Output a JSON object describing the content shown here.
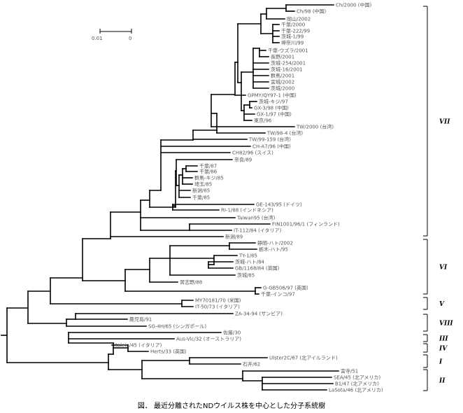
{
  "leaves": [
    {
      "id": "L0",
      "label": "Ch/2000 (中国)"
    },
    {
      "id": "L1",
      "label": "Ch/98 (中国)"
    },
    {
      "id": "L2",
      "label": "岡山/2002"
    },
    {
      "id": "L3",
      "label": "千葉/2000"
    },
    {
      "id": "L4",
      "label": "千葉-222/99"
    },
    {
      "id": "L5",
      "label": "茨城-1/99"
    },
    {
      "id": "L6",
      "label": "神奈川/99"
    },
    {
      "id": "L7",
      "label": "千葉-ウズラ/2001"
    },
    {
      "id": "L8",
      "label": "長野/2001"
    },
    {
      "id": "L9",
      "label": "茨城-254/2001"
    },
    {
      "id": "L10",
      "label": "茨城-16/2001"
    },
    {
      "id": "L11",
      "label": "群馬/2001"
    },
    {
      "id": "L12",
      "label": "宮城/2002"
    },
    {
      "id": "L13",
      "label": "茨城/2000"
    },
    {
      "id": "L14",
      "label": "GPMY/QY97-1 (中国)"
    },
    {
      "id": "L15",
      "label": "茨城-キジ/97"
    },
    {
      "id": "L16",
      "label": "GX-3/98 (中国)"
    },
    {
      "id": "L17",
      "label": "GX-1/97 (中国)"
    },
    {
      "id": "L18",
      "label": "東京/96"
    },
    {
      "id": "L19",
      "label": "TW/2000 (台湾)"
    },
    {
      "id": "L20",
      "label": "TW/98-4 (台湾)"
    },
    {
      "id": "L21",
      "label": "TW/99-159 (台湾)"
    },
    {
      "id": "L22",
      "label": "CH-A7/96 (中国)"
    },
    {
      "id": "L23",
      "label": "CH82/96 (スイス)"
    },
    {
      "id": "L24",
      "label": "奈良/89"
    },
    {
      "id": "L25",
      "label": "千葉/87"
    },
    {
      "id": "L26",
      "label": "千葉/86"
    },
    {
      "id": "L27",
      "label": "群馬-キジ/85"
    },
    {
      "id": "L28",
      "label": "埼玉/85"
    },
    {
      "id": "L29",
      "label": "新潟/85"
    },
    {
      "id": "L30",
      "label": "千葉/85"
    },
    {
      "id": "L31",
      "label": "GE-143/95 (ドイツ)"
    },
    {
      "id": "L32",
      "label": "RI-1/88 (インドネシア)"
    },
    {
      "id": "L33",
      "label": "Taiwan95 (台湾)"
    },
    {
      "id": "L34",
      "label": "FIN1001/96/1 (フィンランド)"
    },
    {
      "id": "L35",
      "label": "IT-112/84 (イタリア)"
    },
    {
      "id": "L36",
      "label": "新潟/89"
    },
    {
      "id": "L37",
      "label": "静岡-ハト/2002"
    },
    {
      "id": "L38",
      "label": "栃木-ハト/95"
    },
    {
      "id": "L39",
      "label": "TY-1/85"
    },
    {
      "id": "L40",
      "label": "茨城-ハト/84"
    },
    {
      "id": "L41",
      "label": "GB/1168/84 (英国)"
    },
    {
      "id": "L42",
      "label": "茨城/85"
    },
    {
      "id": "L43",
      "label": "習志野/88"
    },
    {
      "id": "L44",
      "label": "G-GB506/97 (英国)"
    },
    {
      "id": "L45",
      "label": "千葉-インコ/97"
    },
    {
      "id": "L46",
      "label": "MY70181/70 (米国)"
    },
    {
      "id": "L47",
      "label": "IT-50/73 (イタリア)"
    },
    {
      "id": "L48",
      "label": "ZA-34-94 (ザンビア)"
    },
    {
      "id": "L49",
      "label": "鹿児島/91"
    },
    {
      "id": "L50",
      "label": "SG-4H/65 (シンガポール)"
    },
    {
      "id": "L51",
      "label": "佐藤/30"
    },
    {
      "id": "L52",
      "label": "Aus-Vic/32 (オーストラリア)"
    },
    {
      "id": "L53",
      "label": "Italein/45 (イタリア)"
    },
    {
      "id": "L54",
      "label": "Herts/33 (英国)"
    },
    {
      "id": "L55",
      "label": "Ulster2C/67 (北アイルランド)"
    },
    {
      "id": "L56",
      "label": "石井/62"
    },
    {
      "id": "L57",
      "label": "宮寺/51"
    },
    {
      "id": "L58",
      "label": "SEA/45 (北アメリカ)"
    },
    {
      "id": "L59",
      "label": "B1/47 (北アメリカ)"
    },
    {
      "id": "L60",
      "label": "LaSota/46 (北アメリカ)"
    }
  ],
  "clades": [
    {
      "label": "VII"
    },
    {
      "label": "VI"
    },
    {
      "label": "V"
    },
    {
      "label": "VIII"
    },
    {
      "label": "III"
    },
    {
      "label": "IV"
    },
    {
      "label": "I"
    },
    {
      "label": "II"
    }
  ],
  "scale_bar": {
    "left_label": "0.01",
    "right_label": "0"
  },
  "caption": "図． 最近分離されたNDウイルス株を中心とした分子系統樹"
}
